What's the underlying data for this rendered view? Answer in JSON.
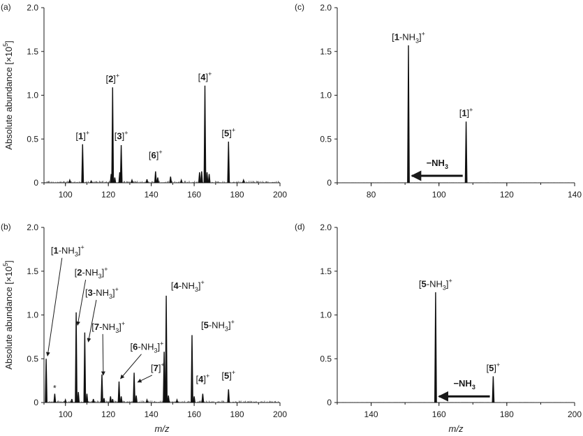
{
  "figure": {
    "ylabel": "Absolute abundance [×10",
    "ylabel_exp": "5",
    "ylabel_close": "]",
    "xlabel": "m/z"
  },
  "chart_data": [
    {
      "panel": "(a)",
      "type": "line",
      "xlim": [
        90,
        200
      ],
      "ylim": [
        0,
        2.0
      ],
      "x_ticks": [
        100,
        120,
        140,
        160,
        180,
        200
      ],
      "y_ticks": [
        "0",
        "0.5",
        "1.0",
        "1.5",
        "2.0"
      ],
      "y_ticks_values": [
        0,
        0.5,
        1.0,
        1.5,
        2.0
      ],
      "peaks": [
        {
          "x": 108,
          "y": 0.44
        },
        {
          "x": 122,
          "y": 1.09
        },
        {
          "x": 121.3,
          "y": 0.1
        },
        {
          "x": 123,
          "y": 0.06
        },
        {
          "x": 126,
          "y": 0.43
        },
        {
          "x": 125.3,
          "y": 0.12
        },
        {
          "x": 138,
          "y": 0.04
        },
        {
          "x": 142,
          "y": 0.13
        },
        {
          "x": 143,
          "y": 0.06
        },
        {
          "x": 149,
          "y": 0.07
        },
        {
          "x": 162.5,
          "y": 0.12
        },
        {
          "x": 163.5,
          "y": 0.13
        },
        {
          "x": 165,
          "y": 1.11
        },
        {
          "x": 166,
          "y": 0.12
        },
        {
          "x": 167,
          "y": 0.1
        },
        {
          "x": 176,
          "y": 0.47
        },
        {
          "x": 183,
          "y": 0.03
        },
        {
          "x": 102,
          "y": 0.03
        },
        {
          "x": 112,
          "y": 0.02
        },
        {
          "x": 131,
          "y": 0.03
        },
        {
          "x": 154,
          "y": 0.03
        }
      ],
      "labels": [
        {
          "x": 108,
          "y": 0.5,
          "text": "[1]",
          "bold": "1",
          "sup": "+"
        },
        {
          "x": 122,
          "y": 1.15,
          "text": "[2]",
          "bold": "2",
          "sup": "+"
        },
        {
          "x": 126,
          "y": 0.5,
          "text": "[3]",
          "bold": "3",
          "sup": "+"
        },
        {
          "x": 142,
          "y": 0.28,
          "text": "[6]",
          "bold": "6",
          "sup": "+"
        },
        {
          "x": 165,
          "y": 1.17,
          "text": "[4]",
          "bold": "4",
          "sup": "+"
        },
        {
          "x": 176,
          "y": 0.53,
          "text": "[5]",
          "bold": "5",
          "sup": "+"
        }
      ]
    },
    {
      "panel": "(b)",
      "type": "line",
      "xlim": [
        90,
        200
      ],
      "ylim": [
        0,
        2.0
      ],
      "x_ticks": [
        100,
        120,
        140,
        160,
        180,
        200
      ],
      "y_ticks": [
        "0",
        "0.5",
        "1.0",
        "1.5",
        "2.0"
      ],
      "y_ticks_values": [
        0,
        0.5,
        1.0,
        1.5,
        2.0
      ],
      "star": {
        "x": 95,
        "y": 0.13,
        "text": "*"
      },
      "peaks": [
        {
          "x": 91,
          "y": 0.5
        },
        {
          "x": 95,
          "y": 0.1
        },
        {
          "x": 103,
          "y": 0.04
        },
        {
          "x": 105,
          "y": 1.03
        },
        {
          "x": 106,
          "y": 0.12
        },
        {
          "x": 109,
          "y": 0.8
        },
        {
          "x": 110,
          "y": 0.1
        },
        {
          "x": 117,
          "y": 0.32
        },
        {
          "x": 118,
          "y": 0.05
        },
        {
          "x": 121,
          "y": 0.07
        },
        {
          "x": 122,
          "y": 0.04
        },
        {
          "x": 125,
          "y": 0.24
        },
        {
          "x": 126,
          "y": 0.07
        },
        {
          "x": 132,
          "y": 0.34
        },
        {
          "x": 133,
          "y": 0.08
        },
        {
          "x": 147,
          "y": 1.22
        },
        {
          "x": 146,
          "y": 0.58
        },
        {
          "x": 148,
          "y": 0.08
        },
        {
          "x": 159,
          "y": 0.77
        },
        {
          "x": 160,
          "y": 0.07
        },
        {
          "x": 164,
          "y": 0.1
        },
        {
          "x": 176,
          "y": 0.15
        },
        {
          "x": 100,
          "y": 0.03
        },
        {
          "x": 113,
          "y": 0.04
        },
        {
          "x": 138,
          "y": 0.03
        },
        {
          "x": 152,
          "y": 0.03
        }
      ],
      "labels": [
        {
          "x": 101,
          "y": 1.7,
          "text": "[1-NH3]",
          "bold": "1",
          "sup": "+",
          "arrow_to": [
            91,
            0.5
          ]
        },
        {
          "x": 112,
          "y": 1.45,
          "text": "[2-NH3]",
          "bold": "2",
          "sup": "+",
          "arrow_to": [
            105,
            0.85
          ]
        },
        {
          "x": 117,
          "y": 1.22,
          "text": "[3-NH3]",
          "bold": "3",
          "sup": "+",
          "arrow_to": [
            110,
            0.66
          ]
        },
        {
          "x": 120,
          "y": 0.83,
          "text": "[7-NH3]",
          "bold": "7",
          "sup": "+",
          "arrow_to": [
            117,
            0.28
          ]
        },
        {
          "x": 138,
          "y": 0.6,
          "text": "[6-NH3]",
          "bold": "6",
          "sup": "+",
          "arrow_to": [
            125,
            0.24
          ]
        },
        {
          "x": 143,
          "y": 0.36,
          "text": "[7]",
          "bold": "7",
          "sup": "+",
          "arrow_to": [
            133,
            0.2
          ]
        },
        {
          "x": 157,
          "y": 1.3,
          "text": "[4-NH3]",
          "bold": "4",
          "sup": "+"
        },
        {
          "x": 171,
          "y": 0.85,
          "text": "[5-NH3]",
          "bold": "5",
          "sup": "+"
        },
        {
          "x": 164,
          "y": 0.23,
          "text": "[4]",
          "bold": "4",
          "sup": "+"
        },
        {
          "x": 176,
          "y": 0.27,
          "text": "[5]",
          "bold": "5",
          "sup": "+"
        }
      ]
    },
    {
      "panel": "(c)",
      "type": "line",
      "xlim": [
        70,
        140
      ],
      "ylim": [
        0,
        2.0
      ],
      "x_ticks": [
        80,
        100,
        120,
        140
      ],
      "y_ticks": [
        "0",
        "0.5",
        "1.0",
        "1.5",
        "2.0"
      ],
      "y_ticks_values": [
        0,
        0.5,
        1.0,
        1.5,
        2.0
      ],
      "peaks": [
        {
          "x": 91,
          "y": 1.57
        },
        {
          "x": 108,
          "y": 0.7
        }
      ],
      "labels": [
        {
          "x": 91,
          "y": 1.63,
          "text": "[1-NH3]",
          "bold": "1",
          "sup": "+"
        },
        {
          "x": 108,
          "y": 0.76,
          "text": "[1]",
          "bold": "1",
          "sup": "+"
        }
      ],
      "arrow": {
        "from": 107,
        "to": 92,
        "y": 0.08,
        "label": "−NH3"
      }
    },
    {
      "panel": "(d)",
      "type": "line",
      "xlim": [
        130,
        200
      ],
      "ylim": [
        0,
        2.0
      ],
      "x_ticks": [
        140,
        160,
        180,
        200
      ],
      "y_ticks": [
        "0",
        "0.5",
        "1.0",
        "1.5",
        "2.0"
      ],
      "y_ticks_values": [
        0,
        0.5,
        1.0,
        1.5,
        2.0
      ],
      "peaks": [
        {
          "x": 159,
          "y": 1.26
        },
        {
          "x": 176,
          "y": 0.3
        }
      ],
      "labels": [
        {
          "x": 159,
          "y": 1.32,
          "text": "[5-NH3]",
          "bold": "5",
          "sup": "+"
        },
        {
          "x": 176,
          "y": 0.36,
          "text": "[5]",
          "bold": "5",
          "sup": "+"
        }
      ],
      "arrow": {
        "from": 175,
        "to": 160,
        "y": 0.07,
        "label": "−NH3"
      }
    }
  ]
}
